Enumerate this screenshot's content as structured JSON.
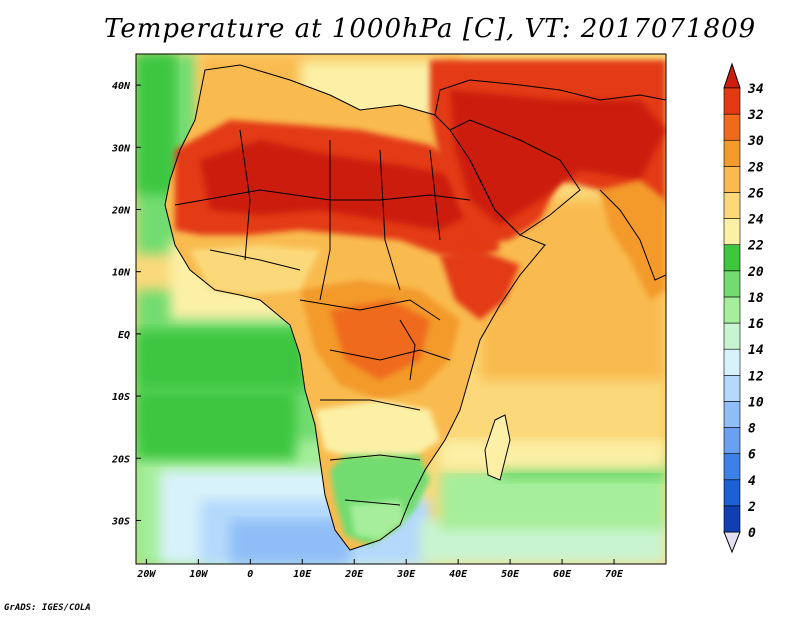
{
  "title": "Temperature at 1000hPa [C], VT: 2017071809",
  "credit": "GrADS: IGES/COLA",
  "map": {
    "lon_range": [
      -22,
      80
    ],
    "lat_range": [
      -37,
      45
    ],
    "x_ticks": [
      "20W",
      "10W",
      "0",
      "10E",
      "20E",
      "30E",
      "40E",
      "50E",
      "60E",
      "70E"
    ],
    "y_ticks": [
      "40N",
      "30N",
      "20N",
      "10N",
      "EQ",
      "10S",
      "20S",
      "30S"
    ]
  },
  "colorbar": {
    "levels": [
      "0",
      "2",
      "4",
      "6",
      "8",
      "10",
      "12",
      "14",
      "16",
      "18",
      "20",
      "22",
      "24",
      "26",
      "28",
      "30",
      "32",
      "34"
    ],
    "colors": [
      "#0b1f7a",
      "#0f3fb3",
      "#1c60d6",
      "#3d80e8",
      "#6aa0f2",
      "#8fbdf7",
      "#b4d9fb",
      "#d8f2fb",
      "#c9f4d2",
      "#a6ee9b",
      "#72dc6f",
      "#3ec63f",
      "#fbf0a6",
      "#fbd97a",
      "#f9bb4f",
      "#f39a2a",
      "#ef6a1c",
      "#e33a14",
      "#cc1d0f"
    ]
  }
}
